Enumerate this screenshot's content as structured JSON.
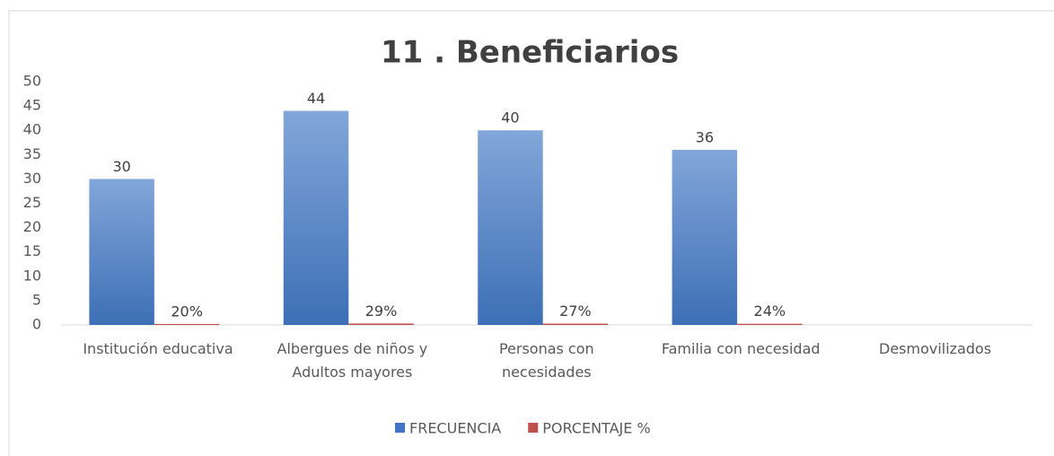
{
  "chart_data": {
    "type": "bar",
    "title": "11 . Beneficiarios",
    "categories": [
      "Institución educativa",
      "Albergues de niños y\nAdultos mayores",
      "Personas con\nnecesidades",
      "Familia con necesidad",
      "Desmovilizados"
    ],
    "series": [
      {
        "name": "FRECUENCIA",
        "color": "#4472c4",
        "values": [
          30,
          44,
          40,
          36,
          null
        ]
      },
      {
        "name": "PORCENTAJE %",
        "color": "#c0504d",
        "values": [
          0.2,
          0.29,
          0.27,
          0.24,
          null
        ],
        "value_labels": [
          "20%",
          "29%",
          "27%",
          "24%",
          null
        ]
      }
    ],
    "ylim": [
      0,
      50
    ],
    "yticks": [
      0,
      5,
      10,
      15,
      20,
      25,
      30,
      35,
      40,
      45,
      50
    ],
    "grid": false,
    "legend": "bottom"
  }
}
